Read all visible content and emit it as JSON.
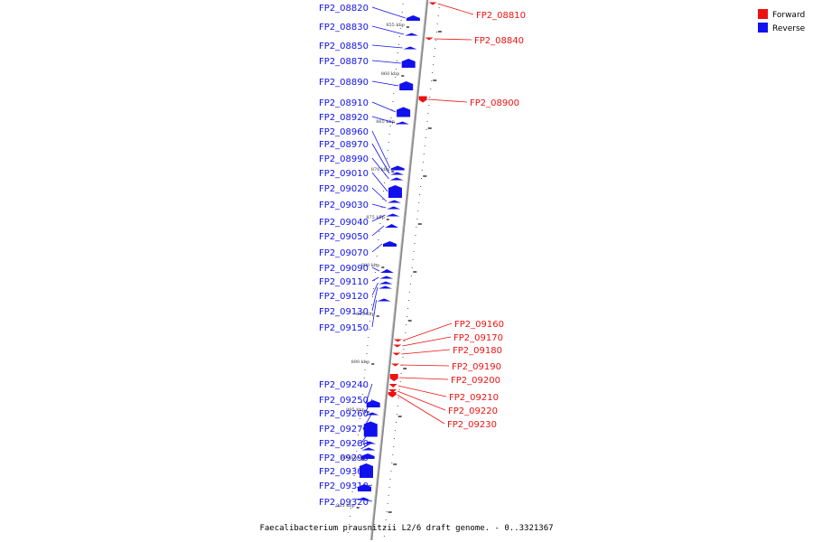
{
  "legend": [
    {
      "label": "Forward",
      "color": "#ee1111"
    },
    {
      "label": "Reverse",
      "color": "#1111ee"
    }
  ],
  "caption": "Faecalibacterium prausnitzii L2/6 draft genome. - 0..3321367",
  "colors": {
    "forward": "#ee1111",
    "reverse": "#1111ee",
    "axis": "#888888"
  },
  "ticks": [
    {
      "pos_kbp": 855,
      "label": "855 kbp"
    },
    {
      "pos_kbp": 860,
      "label": "860 kbp"
    },
    {
      "pos_kbp": 865,
      "label": "865 kbp"
    },
    {
      "pos_kbp": 870,
      "label": "870 kbp"
    },
    {
      "pos_kbp": 875,
      "label": "875 kbp"
    },
    {
      "pos_kbp": 880,
      "label": "880 kbp"
    },
    {
      "pos_kbp": 885,
      "label": "885 kbp"
    },
    {
      "pos_kbp": 890,
      "label": "890 kbp"
    },
    {
      "pos_kbp": 895,
      "label": "895 kbp"
    },
    {
      "pos_kbp": 900,
      "label": "900 kbp"
    },
    {
      "pos_kbp": 905,
      "label": "905 kbp"
    }
  ],
  "genes_reverse": [
    {
      "label": "FP2_08820"
    },
    {
      "label": "FP2_08830"
    },
    {
      "label": "FP2_08850"
    },
    {
      "label": "FP2_08870"
    },
    {
      "label": "FP2_08890"
    },
    {
      "label": "FP2_08910"
    },
    {
      "label": "FP2_08920"
    },
    {
      "label": "FP2_08960"
    },
    {
      "label": "FP2_08970"
    },
    {
      "label": "FP2_08990"
    },
    {
      "label": "FP2_09010"
    },
    {
      "label": "FP2_09020"
    },
    {
      "label": "FP2_09030"
    },
    {
      "label": "FP2_09040"
    },
    {
      "label": "FP2_09050"
    },
    {
      "label": "FP2_09070"
    },
    {
      "label": "FP2_09090"
    },
    {
      "label": "FP2_09110"
    },
    {
      "label": "FP2_09120"
    },
    {
      "label": "FP2_09130"
    },
    {
      "label": "FP2_09150"
    },
    {
      "label": "FP2_09240"
    },
    {
      "label": "FP2_09250"
    },
    {
      "label": "FP2_09260"
    },
    {
      "label": "FP2_09270"
    },
    {
      "label": "FP2_09280"
    },
    {
      "label": "FP2_09290"
    },
    {
      "label": "FP2_09300"
    },
    {
      "label": "FP2_09310"
    },
    {
      "label": "FP2_09320"
    }
  ],
  "genes_forward": [
    {
      "label": "FP2_08810"
    },
    {
      "label": "FP2_08840"
    },
    {
      "label": "FP2_08900"
    },
    {
      "label": "FP2_09160"
    },
    {
      "label": "FP2_09170"
    },
    {
      "label": "FP2_09180"
    },
    {
      "label": "FP2_09190"
    },
    {
      "label": "FP2_09200"
    },
    {
      "label": "FP2_09210"
    },
    {
      "label": "FP2_09220"
    },
    {
      "label": "FP2_09230"
    }
  ]
}
